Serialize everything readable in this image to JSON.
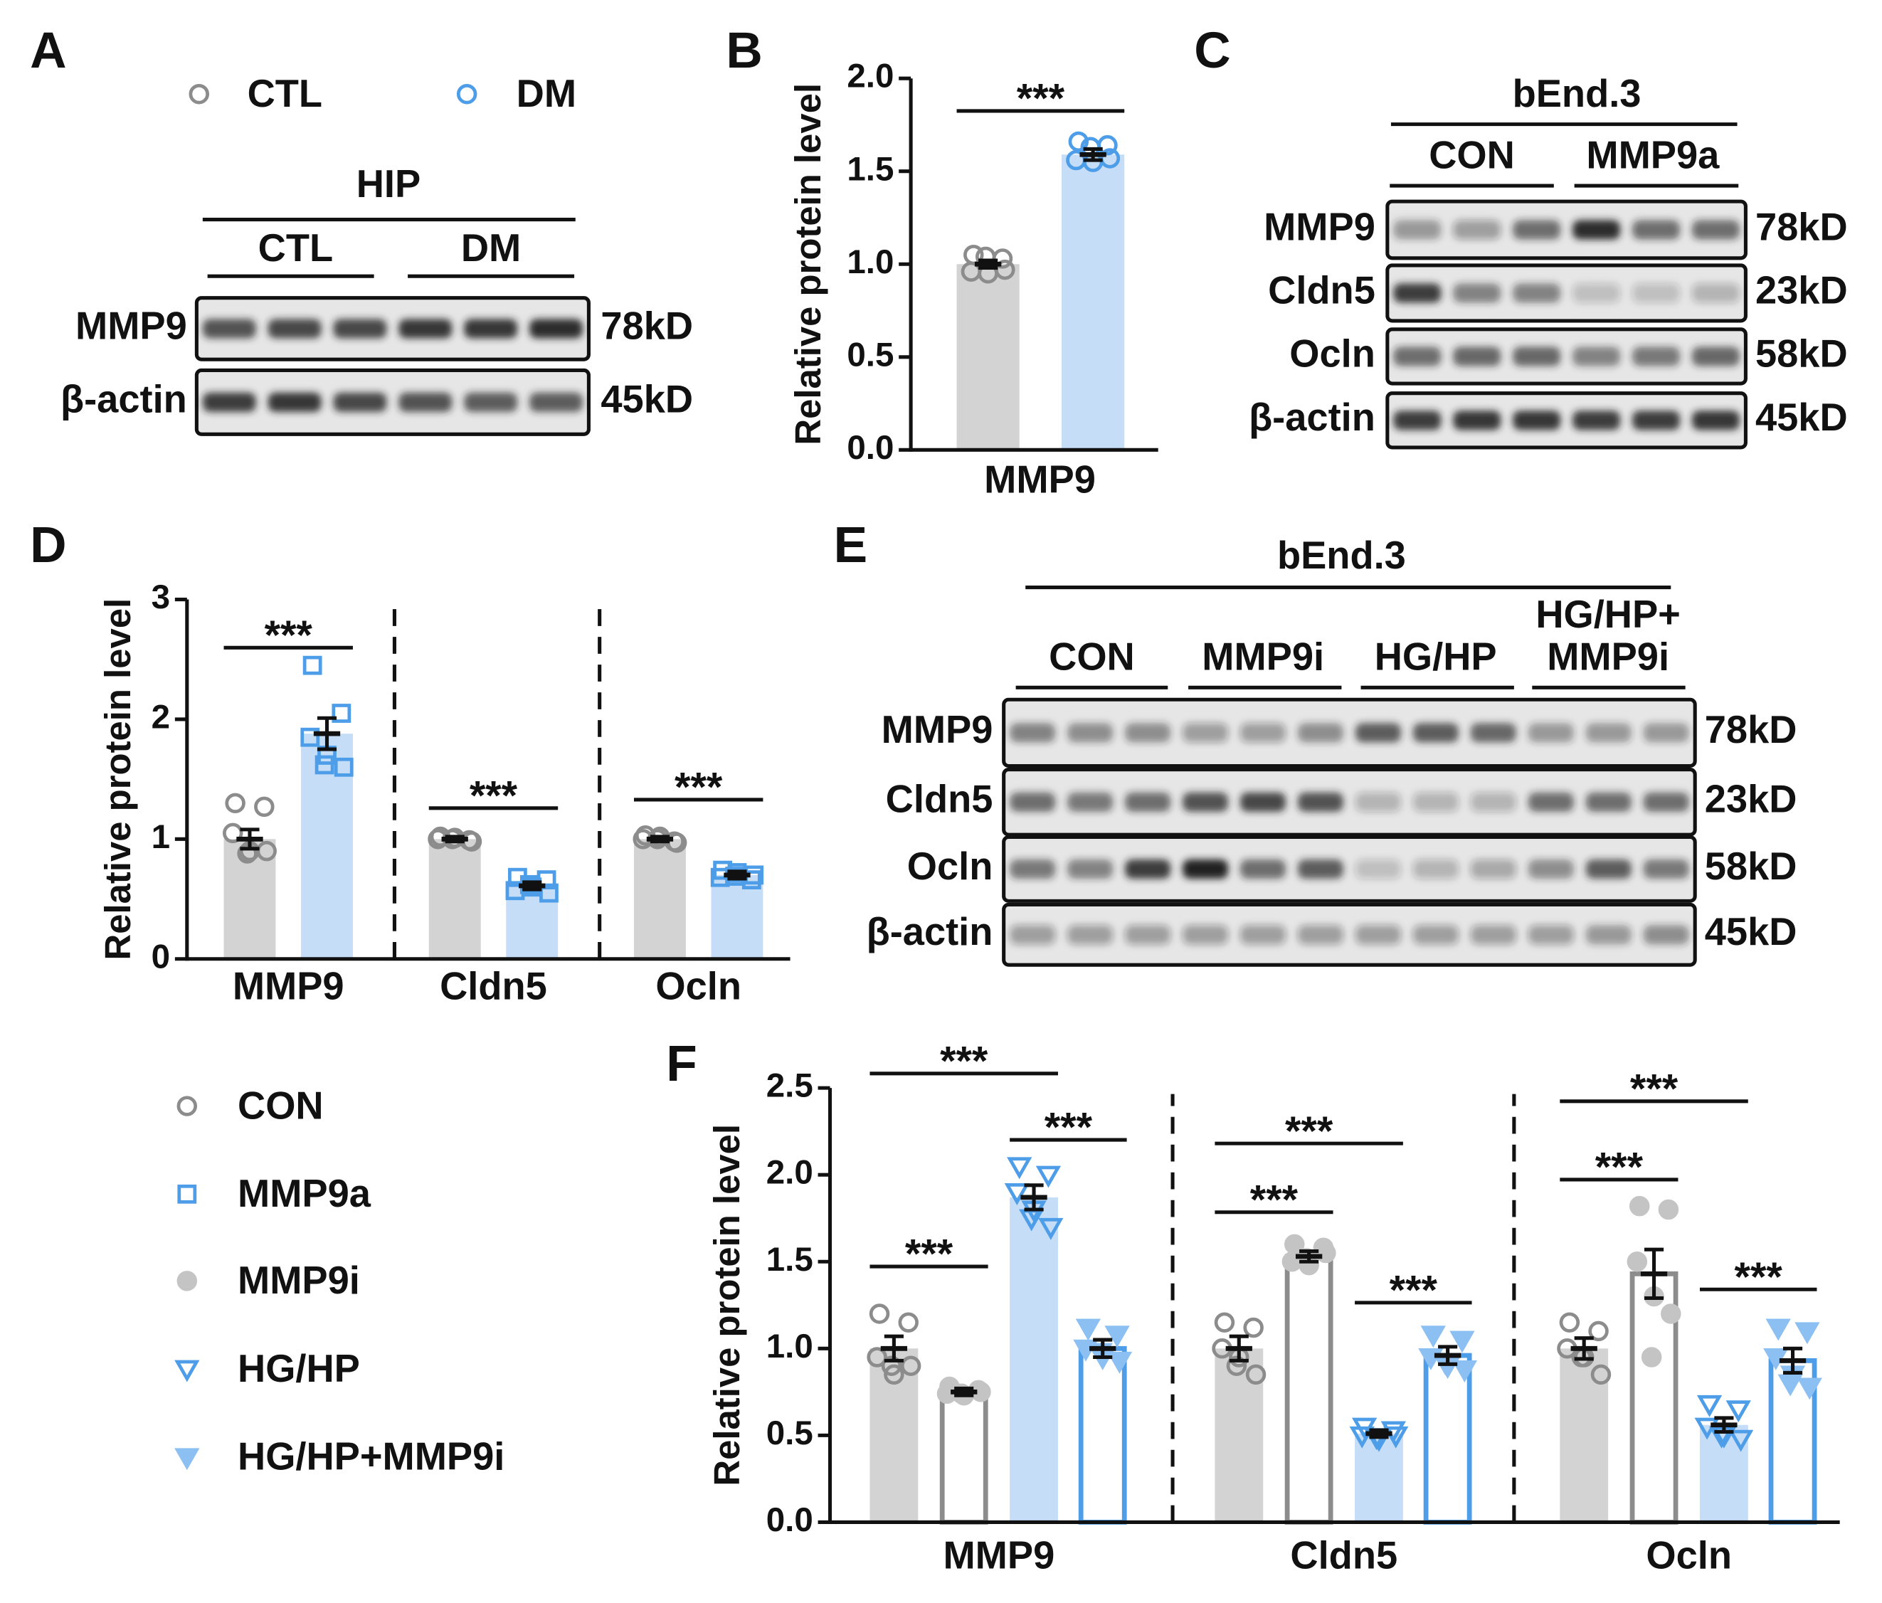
{
  "panel_labels": [
    "A",
    "B",
    "C",
    "D",
    "E",
    "F"
  ],
  "blot_a": {
    "region": "HIP",
    "groups": [
      "CTL",
      "DM"
    ],
    "rows": [
      "MMP9",
      "β-actin"
    ],
    "sizes": [
      "78kD",
      "45kD"
    ]
  },
  "blot_c": {
    "title": "bEnd.3",
    "groups": [
      "CON",
      "MMP9a"
    ],
    "rows": [
      "MMP9",
      "Cldn5",
      "Ocln",
      "β-actin"
    ],
    "sizes": [
      "78kD",
      "23kD",
      "58kD",
      "45kD"
    ]
  },
  "blot_e": {
    "title": "bEnd.3",
    "groups": [
      "CON",
      "MMP9i",
      "HG/HP",
      "HG/HP+\nMMP9i"
    ],
    "rows": [
      "MMP9",
      "Cldn5",
      "Ocln",
      "β-actin"
    ],
    "sizes": [
      "78kD",
      "23kD",
      "58kD",
      "45kD"
    ]
  },
  "chart_data": [
    {
      "type": "bar",
      "ylabel": "Relative protein level",
      "categories": [
        "MMP9"
      ],
      "ylim": [
        0,
        2
      ],
      "yticks": [
        {
          "value": 0,
          "label": "0.0"
        },
        {
          "value": 0.5,
          "label": "0.5"
        },
        {
          "value": 1,
          "label": "1.0"
        },
        {
          "value": 1.5,
          "label": "1.5"
        },
        {
          "value": 2,
          "label": "2.0"
        }
      ],
      "series": [
        {
          "name": "CTL",
          "values": [
            1.0
          ],
          "errors": [
            0.02
          ],
          "points": [
            [
              1.05,
              1.03,
              0.96,
              0.95,
              0.97,
              1.04
            ]
          ],
          "color": "#8c8c8c",
          "bar_fill": "#d3d3d3",
          "marker": "circle",
          "marker_filled": false
        },
        {
          "name": "DM",
          "values": [
            1.59
          ],
          "errors": [
            0.03
          ],
          "points": [
            [
              1.66,
              1.64,
              1.56,
              1.55,
              1.57,
              1.63
            ]
          ],
          "color": "#4d9de8",
          "bar_fill": "#c5ddf7",
          "marker": "circle",
          "marker_filled": false
        }
      ],
      "annotations": [
        {
          "text": "***",
          "category": 0,
          "series": [
            0,
            1
          ]
        }
      ]
    },
    {
      "type": "bar",
      "ylabel": "Relative protein level",
      "categories": [
        "MMP9",
        "Cldn5",
        "Ocln"
      ],
      "ylim": [
        0,
        3
      ],
      "yticks": [
        0,
        1,
        2,
        3
      ],
      "dashed_separators": true,
      "series": [
        {
          "name": "CON",
          "values": [
            1.0,
            1.0,
            1.0
          ],
          "errors": [
            0.08,
            0.02,
            0.02
          ],
          "points": [
            [
              1.3,
              1.27,
              1.05,
              0.9,
              0.9,
              0.88
            ],
            [
              1.02,
              0.99,
              1.0,
              1.01,
              0.98,
              1.0
            ],
            [
              1.03,
              0.98,
              1.0,
              1.02,
              0.97,
              1.0
            ]
          ],
          "color": "#8c8c8c",
          "bar_fill": "#d3d3d3",
          "marker": "circle",
          "marker_filled": false
        },
        {
          "name": "MMP9a",
          "values": [
            1.88,
            0.61,
            0.7
          ],
          "errors": [
            0.13,
            0.03,
            0.03
          ],
          "points": [
            [
              2.45,
              2.05,
              1.85,
              1.7,
              1.6,
              1.62
            ],
            [
              0.68,
              0.66,
              0.57,
              0.6,
              0.55,
              0.62
            ],
            [
              0.74,
              0.66,
              0.68,
              0.72,
              0.7,
              0.69
            ]
          ],
          "color": "#4d9de8",
          "bar_fill": "#c5ddf7",
          "marker": "square",
          "marker_filled": false
        }
      ],
      "annotations": [
        {
          "text": "***",
          "category": 0,
          "series": [
            0,
            1
          ]
        },
        {
          "text": "***",
          "category": 1,
          "series": [
            0,
            1
          ]
        },
        {
          "text": "***",
          "category": 2,
          "series": [
            0,
            1
          ]
        }
      ]
    },
    {
      "type": "bar",
      "ylabel": "Relative protein level",
      "categories": [
        "MMP9",
        "Cldn5",
        "Ocln"
      ],
      "ylim": [
        0,
        2.5
      ],
      "yticks": [
        {
          "value": 0,
          "label": "0.0"
        },
        {
          "value": 0.5,
          "label": "0.5"
        },
        {
          "value": 1,
          "label": "1.0"
        },
        {
          "value": 1.5,
          "label": "1.5"
        },
        {
          "value": 2,
          "label": "2.0"
        },
        {
          "value": 2.5,
          "label": "2.5"
        }
      ],
      "dashed_separators": true,
      "series": [
        {
          "values": [
            1.0,
            1.0,
            1.0
          ],
          "errors": [
            0.07,
            0.07,
            0.06
          ],
          "points": [
            [
              1.2,
              1.15,
              0.95,
              0.85,
              0.9,
              0.9
            ],
            [
              1.15,
              1.12,
              1.0,
              0.95,
              0.85,
              0.9
            ],
            [
              1.15,
              1.1,
              1.0,
              0.95,
              0.85,
              0.95
            ]
          ],
          "color": "#8c8c8c",
          "bar_fill": "#d3d3d3",
          "marker": "circle",
          "marker_filled": false
        },
        {
          "name": "MMP9i",
          "values": [
            0.75,
            1.53,
            1.43
          ],
          "errors": [
            0.02,
            0.03,
            0.14
          ],
          "points": [
            [
              0.78,
              0.76,
              0.74,
              0.73,
              0.75,
              0.74
            ],
            [
              1.6,
              1.58,
              1.5,
              1.48,
              1.55,
              1.52
            ],
            [
              1.82,
              1.8,
              1.5,
              1.3,
              1.2,
              0.95
            ]
          ],
          "color": "#c4c4c4",
          "bar_fill": "#ffffff",
          "bar_stroke": "#8c8c8c",
          "marker": "circle",
          "marker_filled": true
        },
        {
          "name": "HG/HP",
          "values": [
            1.87,
            0.51,
            0.56
          ],
          "errors": [
            0.07,
            0.02,
            0.04
          ],
          "points": [
            [
              2.05,
              2.0,
              1.9,
              1.8,
              1.7,
              1.75
            ],
            [
              0.55,
              0.53,
              0.5,
              0.48,
              0.5,
              0.49
            ],
            [
              0.68,
              0.65,
              0.55,
              0.5,
              0.48,
              0.5
            ]
          ],
          "color": "#4d9de8",
          "bar_fill": "#c5ddf7",
          "marker": "triangle",
          "marker_filled": false
        },
        {
          "name": "HG/HP+MMP9i",
          "values": [
            1.0,
            0.96,
            0.93
          ],
          "errors": [
            0.05,
            0.05,
            0.07
          ],
          "points": [
            [
              1.12,
              1.08,
              1.0,
              0.95,
              0.93,
              0.98
            ],
            [
              1.08,
              1.05,
              0.95,
              0.9,
              0.88,
              0.92
            ],
            [
              1.12,
              1.1,
              0.95,
              0.85,
              0.78,
              0.8
            ]
          ],
          "color": "#8cc0f2",
          "bar_fill": "#ffffff",
          "bar_stroke": "#4d9de8",
          "marker": "triangle",
          "marker_filled": true
        }
      ],
      "annotations": [
        {
          "text": "***",
          "category": 0,
          "series": [
            0,
            1
          ]
        },
        {
          "text": "***",
          "category": 0,
          "series": [
            0,
            2
          ]
        },
        {
          "text": "***",
          "category": 0,
          "series": [
            2,
            3
          ]
        },
        {
          "text": "***",
          "category": 1,
          "series": [
            0,
            2
          ]
        },
        {
          "text": "***",
          "category": 1,
          "series": [
            0,
            1
          ]
        },
        {
          "text": "***",
          "category": 1,
          "series": [
            2,
            3
          ]
        },
        {
          "text": "***",
          "category": 2,
          "series": [
            0,
            2
          ]
        },
        {
          "text": "***",
          "category": 2,
          "series": [
            0,
            1
          ]
        },
        {
          "text": "***",
          "category": 2,
          "series": [
            2,
            3
          ]
        }
      ]
    }
  ]
}
